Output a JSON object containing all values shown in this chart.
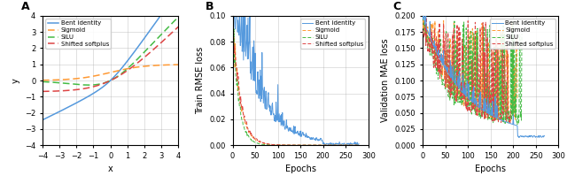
{
  "panel_A": {
    "label": "A",
    "xlim": [
      -4,
      4
    ],
    "ylim": [
      -4,
      4
    ],
    "xlabel": "x",
    "ylabel": "y",
    "xticks": [
      -4,
      -3,
      -2,
      -1,
      0,
      1,
      2,
      3,
      4
    ],
    "yticks": [
      -4,
      -3,
      -2,
      -1,
      0,
      1,
      2,
      3,
      4
    ],
    "lines": {
      "bent_identity": {
        "color": "#5599dd",
        "linestyle": "-",
        "label": "Bent identity"
      },
      "sigmoid": {
        "color": "#ff9933",
        "linestyle": "--",
        "label": "Sigmoid"
      },
      "silu": {
        "color": "#44bb44",
        "linestyle": "--",
        "label": "SiLU"
      },
      "shifted_softplus": {
        "color": "#dd4444",
        "linestyle": "--",
        "label": "Shifted softplus"
      }
    }
  },
  "panel_B": {
    "label": "B",
    "xlim": [
      0,
      300
    ],
    "ylim": [
      0,
      0.1
    ],
    "xlabel": "Epochs",
    "ylabel": "Train RMSE loss",
    "yticks": [
      0.0,
      0.02,
      0.04,
      0.06,
      0.08,
      0.1
    ],
    "xticks": [
      0,
      50,
      100,
      150,
      200,
      250,
      300
    ],
    "lines": {
      "bent_identity": {
        "color": "#5599dd",
        "linestyle": "-",
        "label": "Bent identity"
      },
      "sigmoid": {
        "color": "#ff9933",
        "linestyle": "--",
        "label": "Sigmoid"
      },
      "silu": {
        "color": "#44bb44",
        "linestyle": "--",
        "label": "SiLU"
      },
      "shifted_softplus": {
        "color": "#dd4444",
        "linestyle": "--",
        "label": "Shifted softplus"
      }
    }
  },
  "panel_C": {
    "label": "C",
    "xlim": [
      0,
      300
    ],
    "ylim": [
      0,
      0.2
    ],
    "xlabel": "Epochs",
    "ylabel": "Validation MAE loss",
    "yticks": [
      0.0,
      0.025,
      0.05,
      0.075,
      0.1,
      0.125,
      0.15,
      0.175,
      0.2
    ],
    "xticks": [
      0,
      50,
      100,
      150,
      200,
      250,
      300
    ],
    "lines": {
      "bent_identity": {
        "color": "#5599dd",
        "linestyle": "-",
        "label": "Bent identity"
      },
      "sigmoid": {
        "color": "#ff9933",
        "linestyle": "--",
        "label": "Sigmoid"
      },
      "silu": {
        "color": "#44bb44",
        "linestyle": "--",
        "label": "SiLU"
      },
      "shifted_softplus": {
        "color": "#dd4444",
        "linestyle": "--",
        "label": "Shifted softplus"
      }
    }
  },
  "grid_color": "#aaaaaa",
  "grid_alpha": 0.5,
  "bg_color": "#ffffff",
  "figure_bg": "#ffffff"
}
